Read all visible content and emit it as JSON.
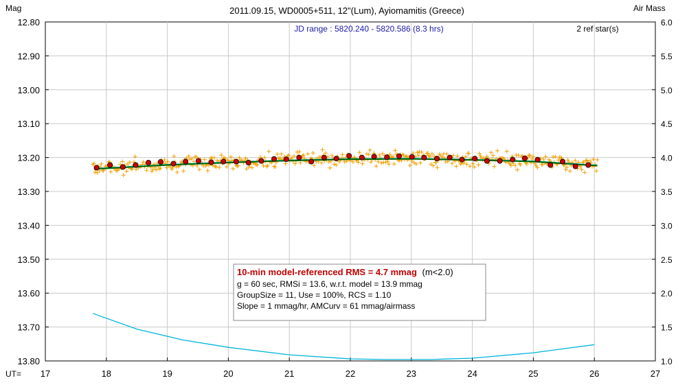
{
  "chart_data": {
    "type": "scatter",
    "title": "2011.09.15, WD0005+511, 12\"(Lum), Ayiomamitis (Greece)",
    "ylabel_left": "Mag",
    "ylabel_right": "Air Mass",
    "xlabel": "UT=",
    "jd_range": "JD range : 5820.240 - 5820.586 (8.3 hrs)",
    "ref_stars": "2 ref star(s)",
    "xlim": [
      17,
      27
    ],
    "ylim_mag": [
      12.8,
      13.8
    ],
    "ylim_airmass": [
      1.0,
      6.0
    ],
    "x_ticks": [
      "17",
      "18",
      "19",
      "20",
      "21",
      "22",
      "23",
      "24",
      "25",
      "26",
      "27"
    ],
    "y_ticks_left": [
      "12.80",
      "12.90",
      "13.00",
      "13.10",
      "13.20",
      "13.30",
      "13.40",
      "13.50",
      "13.60",
      "13.70",
      "13.80"
    ],
    "y_ticks_right": [
      "6.0",
      "5.5",
      "5.0",
      "4.5",
      "4.0",
      "3.5",
      "3.0",
      "2.5",
      "2.0",
      "1.5",
      "1.0"
    ],
    "info_box": {
      "line1_bold": "10-min model-referenced RMS = 4.7 mmag",
      "line1_tail": "(m<2.0)",
      "line2": "g = 60 sec, RMSi = 13.6, w.r.t. model = 13.9 mmag",
      "line3": "GroupSize = 11, Use = 100%, RCS = 1.10",
      "line4": "Slope = 1 mmag/hr, AMCurv = 61 mmag/airmass"
    },
    "grouped_points": {
      "x": [
        17.84,
        18.06,
        18.27,
        18.48,
        18.69,
        18.89,
        19.1,
        19.3,
        19.51,
        19.72,
        19.92,
        20.13,
        20.33,
        20.54,
        20.75,
        20.95,
        21.16,
        21.36,
        21.57,
        21.77,
        21.98,
        22.19,
        22.39,
        22.6,
        22.8,
        23.01,
        23.21,
        23.42,
        23.63,
        23.83,
        24.04,
        24.24,
        24.45,
        24.66,
        24.86,
        25.07,
        25.28,
        25.48,
        25.69,
        25.9
      ],
      "y": [
        13.23,
        13.222,
        13.228,
        13.222,
        13.215,
        13.213,
        13.218,
        13.212,
        13.21,
        13.214,
        13.212,
        13.212,
        13.215,
        13.21,
        13.204,
        13.205,
        13.2,
        13.212,
        13.2,
        13.203,
        13.195,
        13.2,
        13.197,
        13.199,
        13.196,
        13.198,
        13.2,
        13.203,
        13.2,
        13.206,
        13.203,
        13.21,
        13.21,
        13.206,
        13.202,
        13.206,
        13.222,
        13.212,
        13.226,
        13.222
      ]
    },
    "model_trend": {
      "x": [
        17.8,
        19.0,
        20.0,
        21.0,
        22.0,
        23.0,
        24.0,
        25.0,
        26.05
      ],
      "y": [
        13.232,
        13.22,
        13.213,
        13.207,
        13.203,
        13.202,
        13.205,
        13.21,
        13.222
      ]
    },
    "airmass_curve": {
      "x": [
        17.78,
        18.5,
        19.25,
        20.0,
        21.0,
        22.0,
        22.6,
        23.3,
        24.0,
        25.0,
        26.0
      ],
      "y": [
        1.7,
        1.47,
        1.31,
        1.2,
        1.09,
        1.03,
        1.02,
        1.02,
        1.04,
        1.12,
        1.24
      ]
    },
    "raw_points": {
      "x_start": 17.78,
      "x_end": 26.05,
      "count": 480,
      "center_mag": 13.21,
      "scatter_mmag": 13.6
    },
    "colors": {
      "raw": "#f0a000",
      "grouped_fill": "#cc0000",
      "trend": "#006400",
      "model_cyan": "#00c8e0",
      "airmass": "#00b4dc",
      "jd_text": "#1a1aa6",
      "rms_text": "#c00000"
    }
  }
}
